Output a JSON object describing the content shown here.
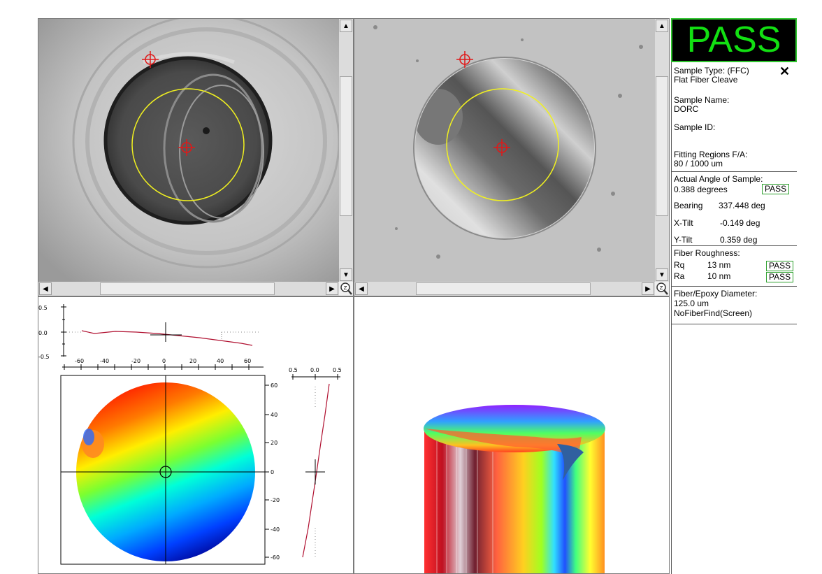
{
  "result": "PASS",
  "info": {
    "sample_type_label": "Sample Type: (FFC)",
    "sample_type_desc": "Flat Fiber Cleave",
    "sample_name_label": "Sample Name:",
    "sample_name": "DORC",
    "sample_id_label": "Sample ID:",
    "sample_id": "",
    "fitting_label": "Fitting Regions F/A:",
    "fitting_value": "80 / 1000 um",
    "angle_label": "Actual Angle of Sample:",
    "angle_value": "0.388 degrees",
    "angle_status": "PASS",
    "bearing_label": "Bearing",
    "bearing_value": "337.448 deg",
    "xtilt_label": "X-Tilt",
    "xtilt_value": "-0.149 deg",
    "ytilt_label": "Y-Tilt",
    "ytilt_value": "0.359 deg",
    "roughness_label": "Fiber Roughness:",
    "rq_label": "Rq",
    "rq_value": "13 nm",
    "rq_status": "PASS",
    "ra_label": "Ra",
    "ra_value": "10 nm",
    "ra_status": "PASS",
    "diameter_label": "Fiber/Epoxy Diameter:",
    "diameter_value": "125.0 um",
    "find_mode": "NoFiberFind(Screen)"
  },
  "profile_x": {
    "yticks": [
      "0.5",
      "0.0",
      "-0.5"
    ],
    "xticks": [
      "-60",
      "-40",
      "-20",
      "0",
      "20",
      "40",
      "60"
    ]
  },
  "profile_y": {
    "xticks": [
      "0.5",
      "0.0",
      "0.5"
    ],
    "yticks": [
      "60",
      "40",
      "20",
      "0",
      "-20",
      "-40",
      "-60"
    ]
  },
  "colors": {
    "pass_green": "#12e012",
    "crosshair_red": "#e01818",
    "circle_yellow": "#f0f020",
    "profile_line": "#b01030"
  },
  "icons": {
    "close": "close-icon",
    "zoom": "zoom-magnifier-icon",
    "scroll_up": "arrow-up-icon",
    "scroll_down": "arrow-down-icon",
    "scroll_left": "arrow-left-icon",
    "scroll_right": "arrow-right-icon"
  }
}
